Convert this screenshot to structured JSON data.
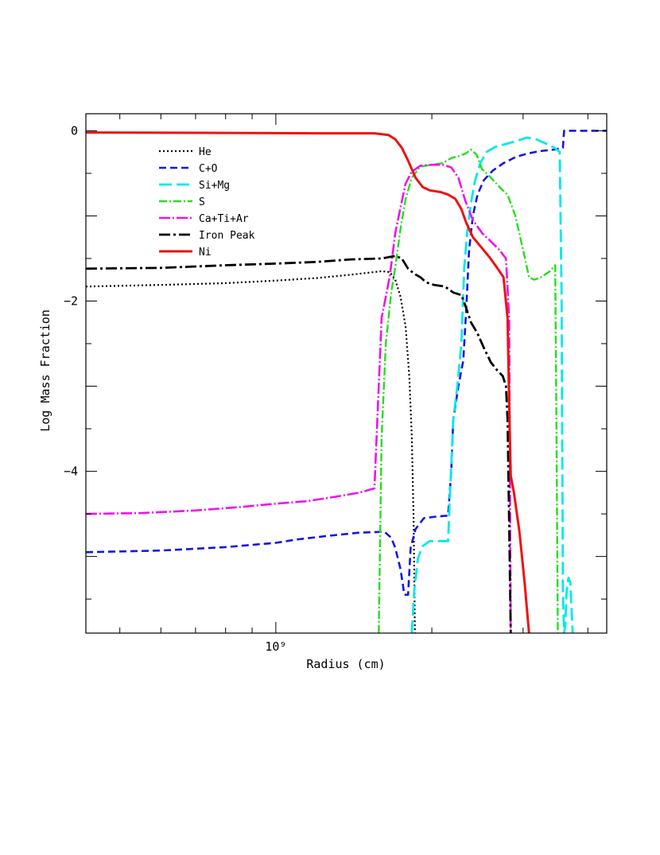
{
  "chart_data": {
    "type": "line",
    "title": "",
    "xlabel": "Radius (cm)",
    "ylabel": "Log Mass Fraction",
    "x_scale": "log",
    "xlim": [
      430000000.0,
      4350000000.0
    ],
    "ylim": [
      -5.9,
      0.2
    ],
    "x_tick_labels": [
      {
        "value": 1000000000.0,
        "label": "10⁹"
      }
    ],
    "y_tick_labels": [
      {
        "value": 0,
        "label": "0"
      },
      {
        "value": -2,
        "label": "−2"
      },
      {
        "value": -4,
        "label": "−4"
      }
    ],
    "grid": false,
    "legend_position": "upper-left",
    "series": [
      {
        "name": "He",
        "color": "#000000",
        "dash": "2,3",
        "width": 2.2,
        "points": [
          [
            430000000.0,
            -1.83
          ],
          [
            600000000.0,
            -1.81
          ],
          [
            800000000.0,
            -1.79
          ],
          [
            1000000000.0,
            -1.76
          ],
          [
            1200000000.0,
            -1.73
          ],
          [
            1400000000.0,
            -1.69
          ],
          [
            1600000000.0,
            -1.65
          ],
          [
            1660000000.0,
            -1.66
          ],
          [
            1700000000.0,
            -1.75
          ],
          [
            1740000000.0,
            -1.95
          ],
          [
            1780000000.0,
            -2.3
          ],
          [
            1810000000.0,
            -2.9
          ],
          [
            1830000000.0,
            -3.6
          ],
          [
            1845000000.0,
            -4.6
          ],
          [
            1855000000.0,
            -5.9
          ]
        ]
      },
      {
        "name": "C+O",
        "color": "#1515e6",
        "dash": "9,5",
        "width": 2.6,
        "points": [
          [
            430000000.0,
            -4.95
          ],
          [
            600000000.0,
            -4.93
          ],
          [
            800000000.0,
            -4.89
          ],
          [
            1000000000.0,
            -4.84
          ],
          [
            1100000000.0,
            -4.8
          ],
          [
            1250000000.0,
            -4.76
          ],
          [
            1450000000.0,
            -4.72
          ],
          [
            1620000000.0,
            -4.71
          ],
          [
            1670000000.0,
            -4.78
          ],
          [
            1700000000.0,
            -4.9
          ],
          [
            1740000000.0,
            -5.15
          ],
          [
            1770000000.0,
            -5.45
          ],
          [
            1800000000.0,
            -5.45
          ],
          [
            1820000000.0,
            -4.9
          ],
          [
            1860000000.0,
            -4.68
          ],
          [
            1930000000.0,
            -4.55
          ],
          [
            2050000000.0,
            -4.53
          ],
          [
            2150000000.0,
            -4.52
          ],
          [
            2180000000.0,
            -4.0
          ],
          [
            2200000000.0,
            -3.4
          ],
          [
            2250000000.0,
            -3.0
          ],
          [
            2300000000.0,
            -2.7
          ],
          [
            2330000000.0,
            -2.1
          ],
          [
            2360000000.0,
            -1.4
          ],
          [
            2400000000.0,
            -1.0
          ],
          [
            2450000000.0,
            -0.75
          ],
          [
            2520000000.0,
            -0.58
          ],
          [
            2620000000.0,
            -0.47
          ],
          [
            2750000000.0,
            -0.38
          ],
          [
            2900000000.0,
            -0.31
          ],
          [
            3050000000.0,
            -0.27
          ],
          [
            3220000000.0,
            -0.24
          ],
          [
            3450000000.0,
            -0.22
          ],
          [
            3580000000.0,
            -0.2
          ],
          [
            3600000000.0,
            0
          ],
          [
            4350000000.0,
            0
          ]
        ]
      },
      {
        "name": "Si+Mg",
        "color": "#00e8ee",
        "dash": "16,6",
        "width": 2.8,
        "points": [
          [
            1830000000.0,
            -5.9
          ],
          [
            1850000000.0,
            -5.4
          ],
          [
            1880000000.0,
            -5.02
          ],
          [
            1920000000.0,
            -4.88
          ],
          [
            1980000000.0,
            -4.82
          ],
          [
            2050000000.0,
            -4.82
          ],
          [
            2120000000.0,
            -4.82
          ],
          [
            2150000000.0,
            -4.82
          ],
          [
            2170000000.0,
            -4.2
          ],
          [
            2200000000.0,
            -3.4
          ],
          [
            2240000000.0,
            -3.0
          ],
          [
            2280000000.0,
            -2.5
          ],
          [
            2310000000.0,
            -1.6
          ],
          [
            2340000000.0,
            -1.2
          ],
          [
            2380000000.0,
            -0.85
          ],
          [
            2420000000.0,
            -0.6
          ],
          [
            2480000000.0,
            -0.38
          ],
          [
            2550000000.0,
            -0.25
          ],
          [
            2650000000.0,
            -0.19
          ],
          [
            2800000000.0,
            -0.15
          ],
          [
            2950000000.0,
            -0.11
          ],
          [
            3050000000.0,
            -0.08
          ],
          [
            3180000000.0,
            -0.1
          ],
          [
            3320000000.0,
            -0.15
          ],
          [
            3450000000.0,
            -0.2
          ],
          [
            3530000000.0,
            -0.25
          ],
          [
            3560000000.0,
            -2.0
          ],
          [
            3580000000.0,
            -5.4
          ],
          [
            3600000000.0,
            -5.9
          ],
          [
            3620000000.0,
            -5.8
          ],
          [
            3640000000.0,
            -5.4
          ],
          [
            3670000000.0,
            -5.25
          ],
          [
            3700000000.0,
            -5.3
          ],
          [
            3740000000.0,
            -5.9
          ]
        ]
      },
      {
        "name": "S",
        "color": "#22e01a",
        "dash": "10,3,2,3",
        "width": 2.4,
        "points": [
          [
            1580000000.0,
            -5.9
          ],
          [
            1600000000.0,
            -3.6
          ],
          [
            1630000000.0,
            -2.5
          ],
          [
            1670000000.0,
            -1.9
          ],
          [
            1700000000.0,
            -1.6
          ],
          [
            1740000000.0,
            -1.15
          ],
          [
            1780000000.0,
            -0.8
          ],
          [
            1830000000.0,
            -0.55
          ],
          [
            1900000000.0,
            -0.42
          ],
          [
            2000000000.0,
            -0.4
          ],
          [
            2100000000.0,
            -0.38
          ],
          [
            2180000000.0,
            -0.32
          ],
          [
            2250000000.0,
            -0.3
          ],
          [
            2320000000.0,
            -0.27
          ],
          [
            2380000000.0,
            -0.22
          ],
          [
            2440000000.0,
            -0.28
          ],
          [
            2500000000.0,
            -0.45
          ],
          [
            2600000000.0,
            -0.55
          ],
          [
            2720000000.0,
            -0.68
          ],
          [
            2800000000.0,
            -0.75
          ],
          [
            2900000000.0,
            -1.0
          ],
          [
            3000000000.0,
            -1.4
          ],
          [
            3080000000.0,
            -1.72
          ],
          [
            3150000000.0,
            -1.75
          ],
          [
            3250000000.0,
            -1.72
          ],
          [
            3380000000.0,
            -1.65
          ],
          [
            3460000000.0,
            -1.58
          ],
          [
            3480000000.0,
            -3.5
          ],
          [
            3500000000.0,
            -5.9
          ]
        ]
      },
      {
        "name": "Ca+Ti+Ar",
        "color": "#ee11ee",
        "dash": "14,3,2,3",
        "width": 2.6,
        "points": [
          [
            430000000.0,
            -4.5
          ],
          [
            550000000.0,
            -4.49
          ],
          [
            700000000.0,
            -4.46
          ],
          [
            850000000.0,
            -4.42
          ],
          [
            1000000000.0,
            -4.38
          ],
          [
            1150000000.0,
            -4.35
          ],
          [
            1300000000.0,
            -4.3
          ],
          [
            1450000000.0,
            -4.25
          ],
          [
            1550000000.0,
            -4.2
          ],
          [
            1580000000.0,
            -3.0
          ],
          [
            1600000000.0,
            -2.2
          ],
          [
            1630000000.0,
            -1.95
          ],
          [
            1660000000.0,
            -1.7
          ],
          [
            1700000000.0,
            -1.2
          ],
          [
            1740000000.0,
            -0.9
          ],
          [
            1780000000.0,
            -0.62
          ],
          [
            1830000000.0,
            -0.48
          ],
          [
            1900000000.0,
            -0.41
          ],
          [
            2000000000.0,
            -0.4
          ],
          [
            2100000000.0,
            -0.4
          ],
          [
            2180000000.0,
            -0.43
          ],
          [
            2250000000.0,
            -0.55
          ],
          [
            2320000000.0,
            -0.82
          ],
          [
            2400000000.0,
            -1.05
          ],
          [
            2500000000.0,
            -1.2
          ],
          [
            2600000000.0,
            -1.3
          ],
          [
            2700000000.0,
            -1.4
          ],
          [
            2780000000.0,
            -1.5
          ],
          [
            2820000000.0,
            -2.2
          ],
          [
            2840000000.0,
            -5.9
          ]
        ]
      },
      {
        "name": "Iron Peak",
        "color": "#000000",
        "dash": "14,4,3,4",
        "width": 2.8,
        "points": [
          [
            430000000.0,
            -1.62
          ],
          [
            600000000.0,
            -1.61
          ],
          [
            800000000.0,
            -1.58
          ],
          [
            1000000000.0,
            -1.56
          ],
          [
            1200000000.0,
            -1.54
          ],
          [
            1400000000.0,
            -1.51
          ],
          [
            1600000000.0,
            -1.5
          ],
          [
            1700000000.0,
            -1.47
          ],
          [
            1750000000.0,
            -1.5
          ],
          [
            1800000000.0,
            -1.62
          ],
          [
            1850000000.0,
            -1.68
          ],
          [
            1900000000.0,
            -1.72
          ],
          [
            1950000000.0,
            -1.78
          ],
          [
            2020000000.0,
            -1.81
          ],
          [
            2120000000.0,
            -1.83
          ],
          [
            2200000000.0,
            -1.9
          ],
          [
            2280000000.0,
            -1.93
          ],
          [
            2320000000.0,
            -2.05
          ],
          [
            2380000000.0,
            -2.25
          ],
          [
            2450000000.0,
            -2.38
          ],
          [
            2520000000.0,
            -2.55
          ],
          [
            2600000000.0,
            -2.72
          ],
          [
            2680000000.0,
            -2.82
          ],
          [
            2740000000.0,
            -2.88
          ],
          [
            2780000000.0,
            -3.0
          ],
          [
            2800000000.0,
            -3.4
          ],
          [
            2820000000.0,
            -4.6
          ],
          [
            2840000000.0,
            -5.9
          ]
        ]
      },
      {
        "name": "Ni",
        "color": "#ee1111",
        "dash": "",
        "width": 3.0,
        "points": [
          [
            430000000.0,
            -0.02
          ],
          [
            800000000.0,
            -0.025
          ],
          [
            1200000000.0,
            -0.03
          ],
          [
            1550000000.0,
            -0.03
          ],
          [
            1650000000.0,
            -0.05
          ],
          [
            1700000000.0,
            -0.1
          ],
          [
            1750000000.0,
            -0.2
          ],
          [
            1800000000.0,
            -0.35
          ],
          [
            1860000000.0,
            -0.55
          ],
          [
            1920000000.0,
            -0.66
          ],
          [
            1980000000.0,
            -0.7
          ],
          [
            2080000000.0,
            -0.72
          ],
          [
            2150000000.0,
            -0.75
          ],
          [
            2220000000.0,
            -0.8
          ],
          [
            2280000000.0,
            -0.92
          ],
          [
            2330000000.0,
            -1.08
          ],
          [
            2400000000.0,
            -1.25
          ],
          [
            2500000000.0,
            -1.38
          ],
          [
            2580000000.0,
            -1.48
          ],
          [
            2680000000.0,
            -1.62
          ],
          [
            2750000000.0,
            -1.72
          ],
          [
            2800000000.0,
            -2.2
          ],
          [
            2820000000.0,
            -3.2
          ],
          [
            2840000000.0,
            -4.05
          ],
          [
            2880000000.0,
            -4.25
          ],
          [
            2950000000.0,
            -4.7
          ],
          [
            3020000000.0,
            -5.3
          ],
          [
            3080000000.0,
            -5.9
          ]
        ]
      }
    ]
  }
}
